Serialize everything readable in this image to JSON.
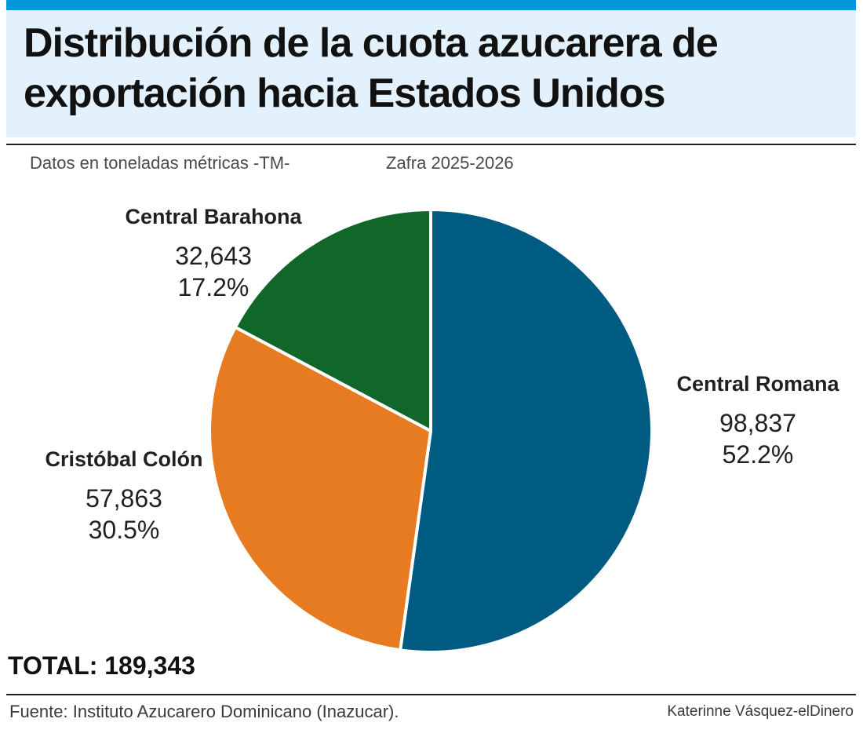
{
  "header": {
    "title": "Distribución de la cuota azucarera de exportación hacia Estados Unidos",
    "units_note": "Datos en toneladas métricas -TM-",
    "season": "Zafra 2025-2026"
  },
  "colors": {
    "accent_bar": "#0097dc",
    "title_background": "#e2f1fb"
  },
  "chart_data": {
    "type": "pie",
    "title": "Distribución de la cuota azucarera de exportación hacia Estados Unidos",
    "units": "toneladas métricas (TM)",
    "start_angle_deg": 0,
    "direction": "clockwise",
    "slices": [
      {
        "name": "Central Romana",
        "value": 98837,
        "value_label": "98,837",
        "percent": 52.2,
        "percent_label": "52.2%",
        "color": "#005b82"
      },
      {
        "name": "Cristóbal Colón",
        "value": 57863,
        "value_label": "57,863",
        "percent": 30.5,
        "percent_label": "30.5%",
        "color": "#e77b21"
      },
      {
        "name": "Central Barahona",
        "value": 32643,
        "value_label": "32,643",
        "percent": 17.2,
        "percent_label": "17.2%",
        "color": "#116729"
      }
    ]
  },
  "summary": {
    "total_label": "TOTAL: 189,343"
  },
  "footer": {
    "source": "Fuente: Instituto Azucarero Dominicano (Inazucar).",
    "credit": "Katerinne Vásquez-elDinero"
  }
}
